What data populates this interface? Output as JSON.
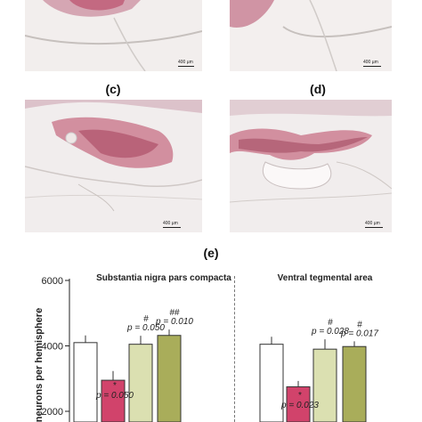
{
  "panels": [
    {
      "id": "a-partial",
      "scale_text": "400 µm"
    },
    {
      "id": "b-partial",
      "scale_text": "400 µm"
    },
    {
      "id": "c",
      "label": "(c)",
      "scale_text": "400 µm"
    },
    {
      "id": "d",
      "label": "(d)",
      "scale_text": "400 µm"
    }
  ],
  "panel_e_label": "(e)",
  "colors": {
    "stain": "#b8415f",
    "bar_white": "#ffffff",
    "bar_pink": "#d1436b",
    "bar_lightgreen": "#dbe0b1",
    "bar_olive": "#a9ad5a"
  },
  "chart_data": [
    {
      "type": "bar",
      "title": "Substantia nigra pars compacta",
      "ylabel": "neurons per hemisphere",
      "ylim": [
        2000,
        6000
      ],
      "yticks": [
        2000,
        4000,
        6000
      ],
      "values": [
        4100,
        2950,
        4050,
        4320
      ],
      "errors": [
        220,
        280,
        260,
        180
      ],
      "bar_colors": [
        "#ffffff",
        "#d1436b",
        "#dbe0b1",
        "#a9ad5a"
      ],
      "annotations": [
        {
          "bar": 1,
          "symbol": "*",
          "p_text": "p = 0.050"
        },
        {
          "bar": 2,
          "symbol": "#",
          "p_text": "p = 0.050"
        },
        {
          "bar": 3,
          "symbol": "##",
          "p_text": "p = 0.010"
        }
      ]
    },
    {
      "type": "bar",
      "title": "Ventral tegmental area",
      "values": [
        4050,
        2750,
        3900,
        3980
      ],
      "errors": [
        230,
        180,
        300,
        160
      ],
      "bar_colors": [
        "#ffffff",
        "#d1436b",
        "#dbe0b1",
        "#a9ad5a"
      ],
      "annotations": [
        {
          "bar": 1,
          "symbol": "*",
          "p_text": "p = 0.023"
        },
        {
          "bar": 2,
          "symbol": "#",
          "p_text": "p = 0.028"
        },
        {
          "bar": 3,
          "symbol": "#",
          "p_text": "p = 0.017"
        }
      ]
    }
  ]
}
